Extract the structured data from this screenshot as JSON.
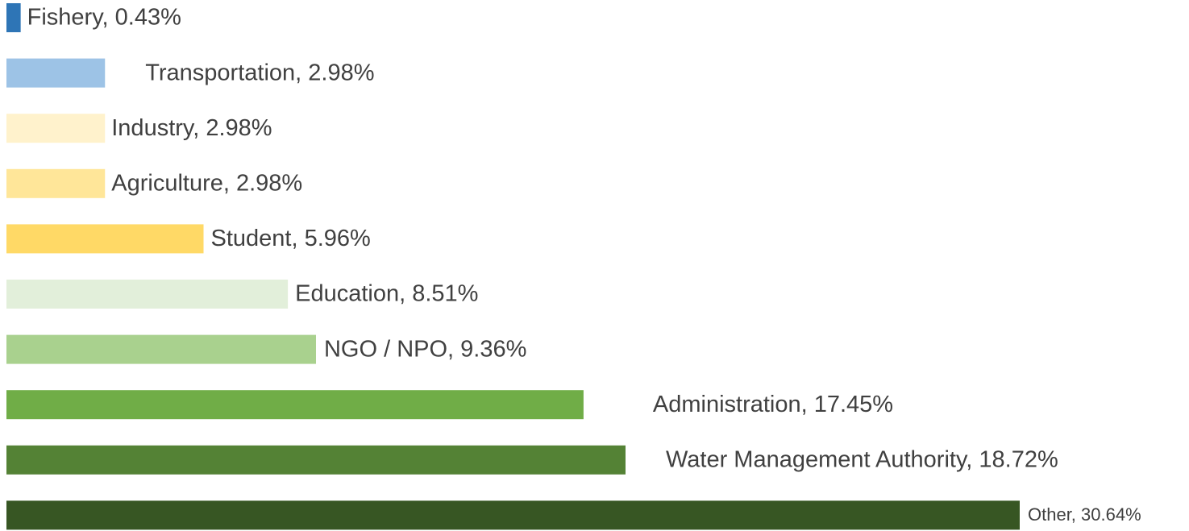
{
  "chart_data": {
    "type": "hbar",
    "values": [
      0.43,
      2.98,
      2.98,
      2.98,
      5.96,
      8.51,
      9.36,
      17.45,
      18.72,
      30.64
    ],
    "value_labels": [
      "Fishery, 0.43%",
      "Transportation, 2.98%",
      "Industry, 2.98%",
      "Agriculture, 2.98%",
      "Student, 5.96%",
      "Education, 8.51%",
      "NGO / NPO, 9.36%",
      "Administration, 17.45%",
      "Water Management Authority, 18.72%",
      "Other, 30.64%"
    ],
    "colors": [
      "#2e75b6",
      "#9dc3e6",
      "#fff2cc",
      "#ffe699",
      "#ffd966",
      "#e2efda",
      "#a9d18e",
      "#70ad47",
      "#548235",
      "#375623"
    ]
  }
}
